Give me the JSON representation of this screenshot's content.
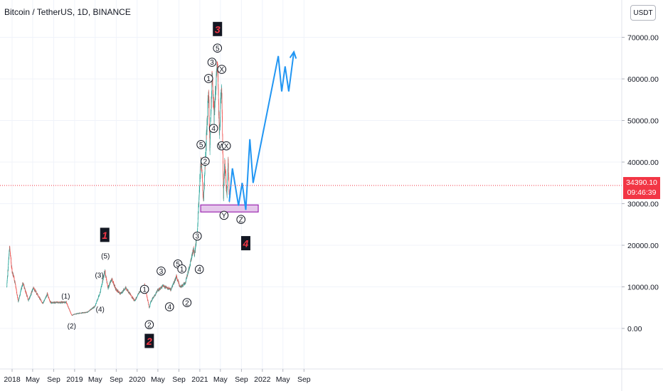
{
  "header": {
    "symbol": "Bitcoin / TetherUS, 1D, BINANCE",
    "currency": "USDT"
  },
  "price_badge": {
    "price": "34390.10",
    "countdown": "09:46:39"
  },
  "chart_data": {
    "type": "candlestick",
    "title": "Bitcoin / TetherUS, 1D, BINANCE",
    "x_tick_labels": [
      "2018",
      "May",
      "Sep",
      "2019",
      "May",
      "Sep",
      "2020",
      "May",
      "Sep",
      "2021",
      "May",
      "Sep",
      "2022",
      "May",
      "Sep"
    ],
    "y_tick_labels": [
      "70000.00",
      "60000.00",
      "50000.00",
      "40000.00",
      "30000.00",
      "20000.00",
      "10000.00",
      "0.00"
    ],
    "ylim": [
      -5000,
      75000
    ],
    "current_price": 34390.1,
    "colors": {
      "up": "#26a69a",
      "down": "#ef5350",
      "forecast": "#2196f3",
      "zone_fill": "#e1bee7",
      "zone_border": "#9c27b0",
      "badge": "#f23645"
    },
    "price_anchors": [
      [
        "2017-12-01",
        10000
      ],
      [
        "2017-12-17",
        19500
      ],
      [
        "2017-12-31",
        14000
      ],
      [
        "2018-01-18",
        11000
      ],
      [
        "2018-02-06",
        6500
      ],
      [
        "2018-03-05",
        11000
      ],
      [
        "2018-04-06",
        6700
      ],
      [
        "2018-05-05",
        9800
      ],
      [
        "2018-06-29",
        6000
      ],
      [
        "2018-07-25",
        8300
      ],
      [
        "2018-08-14",
        6200
      ],
      [
        "2018-11-13",
        6300
      ],
      [
        "2018-12-15",
        3200
      ],
      [
        "2019-01-20",
        3600
      ],
      [
        "2019-03-15",
        3900
      ],
      [
        "2019-04-30",
        5300
      ],
      [
        "2019-05-30",
        8700
      ],
      [
        "2019-06-26",
        13800
      ],
      [
        "2019-07-15",
        9800
      ],
      [
        "2019-08-06",
        11900
      ],
      [
        "2019-08-29",
        9500
      ],
      [
        "2019-09-25",
        8300
      ],
      [
        "2019-10-26",
        9800
      ],
      [
        "2019-12-17",
        6600
      ],
      [
        "2020-01-15",
        8800
      ],
      [
        "2020-02-13",
        10400
      ],
      [
        "2020-03-12",
        4900
      ],
      [
        "2020-03-20",
        6400
      ],
      [
        "2020-04-29",
        9100
      ],
      [
        "2020-06-01",
        10200
      ],
      [
        "2020-07-15",
        9300
      ],
      [
        "2020-08-17",
        12400
      ],
      [
        "2020-09-07",
        10000
      ],
      [
        "2020-10-08",
        10900
      ],
      [
        "2020-11-05",
        15500
      ],
      [
        "2020-11-25",
        19200
      ],
      [
        "2020-12-01",
        17700
      ],
      [
        "2020-12-17",
        23000
      ],
      [
        "2021-01-08",
        41500
      ],
      [
        "2021-01-22",
        30500
      ],
      [
        "2021-02-21",
        57500
      ],
      [
        "2021-02-28",
        44000
      ],
      [
        "2021-03-13",
        61000
      ],
      [
        "2021-03-25",
        51000
      ],
      [
        "2021-04-14",
        64500
      ],
      [
        "2021-04-25",
        47000
      ],
      [
        "2021-05-08",
        59000
      ],
      [
        "2021-05-19",
        32000
      ],
      [
        "2021-05-26",
        40000
      ],
      [
        "2021-06-08",
        32000
      ],
      [
        "2021-06-15",
        40500
      ],
      [
        "2021-06-22",
        30500
      ],
      [
        "2021-06-30",
        34390
      ]
    ],
    "forecast_path": [
      [
        "2021-06-22",
        30500
      ],
      [
        "2021-07-10",
        38500
      ],
      [
        "2021-08-15",
        29500
      ],
      [
        "2021-09-05",
        35000
      ],
      [
        "2021-09-26",
        28500
      ],
      [
        "2021-10-20",
        45500
      ],
      [
        "2021-11-08",
        35000
      ],
      [
        "2022-04-04",
        65500
      ],
      [
        "2022-04-24",
        57000
      ],
      [
        "2022-05-14",
        63000
      ],
      [
        "2022-06-04",
        57000
      ],
      [
        "2022-07-04",
        66500
      ]
    ],
    "support_zone": {
      "x_from": "2021-01-06",
      "x_to": "2021-12-08",
      "y_low": 28000,
      "y_high": 29700
    },
    "wave_labels": [
      {
        "text": "1",
        "x": "2019-06-26",
        "y": 22500,
        "kind": "major"
      },
      {
        "text": "2",
        "x": "2020-03-12",
        "y": -3000,
        "kind": "major"
      },
      {
        "text": "3",
        "x": "2021-04-14",
        "y": 72000,
        "kind": "major"
      },
      {
        "text": "4",
        "x": "2021-09-26",
        "y": 20500,
        "kind": "major"
      },
      {
        "text": "(1)",
        "x": "2018-11-10",
        "y": 7200,
        "kind": "paren"
      },
      {
        "text": "(2)",
        "x": "2018-12-15",
        "y": 0,
        "kind": "paren"
      },
      {
        "text": "(3)",
        "x": "2019-05-25",
        "y": 12200,
        "kind": "paren"
      },
      {
        "text": "(4)",
        "x": "2019-05-30",
        "y": 4000,
        "kind": "paren"
      },
      {
        "text": "(5)",
        "x": "2019-06-30",
        "y": 16800,
        "kind": "paren"
      },
      {
        "text": "1",
        "x": "2020-02-13",
        "y": 9400,
        "kind": "circle"
      },
      {
        "text": "2",
        "x": "2020-03-12",
        "y": 900,
        "kind": "circle"
      },
      {
        "text": "3",
        "x": "2020-05-20",
        "y": 13800,
        "kind": "circle"
      },
      {
        "text": "4",
        "x": "2020-07-08",
        "y": 5200,
        "kind": "circle"
      },
      {
        "text": "5",
        "x": "2020-08-26",
        "y": 15500,
        "kind": "circle"
      },
      {
        "text": "1",
        "x": "2020-09-18",
        "y": 14300,
        "kind": "circle"
      },
      {
        "text": "2",
        "x": "2020-10-18",
        "y": 6200,
        "kind": "circle"
      },
      {
        "text": "3",
        "x": "2020-12-17",
        "y": 22200,
        "kind": "circle"
      },
      {
        "text": "4",
        "x": "2020-12-29",
        "y": 14200,
        "kind": "circle"
      },
      {
        "text": "5",
        "x": "2021-01-08",
        "y": 44200,
        "kind": "circle"
      },
      {
        "text": "2",
        "x": "2021-02-01",
        "y": 40200,
        "kind": "circle"
      },
      {
        "text": "1",
        "x": "2021-02-21",
        "y": 60100,
        "kind": "circle"
      },
      {
        "text": "3",
        "x": "2021-03-13",
        "y": 64000,
        "kind": "circle"
      },
      {
        "text": "4",
        "x": "2021-03-22",
        "y": 48100,
        "kind": "circle"
      },
      {
        "text": "5",
        "x": "2021-04-14",
        "y": 67400,
        "kind": "circle"
      },
      {
        "text": "X",
        "x": "2021-05-09",
        "y": 62300,
        "kind": "circle"
      },
      {
        "text": "W",
        "x": "2021-05-08",
        "y": 43900,
        "kind": "circle"
      },
      {
        "text": "X",
        "x": "2021-06-05",
        "y": 43900,
        "kind": "circle"
      },
      {
        "text": "Y",
        "x": "2021-05-22",
        "y": 27200,
        "kind": "circle"
      },
      {
        "text": "Z",
        "x": "2021-08-29",
        "y": 26200,
        "kind": "circle"
      }
    ]
  }
}
